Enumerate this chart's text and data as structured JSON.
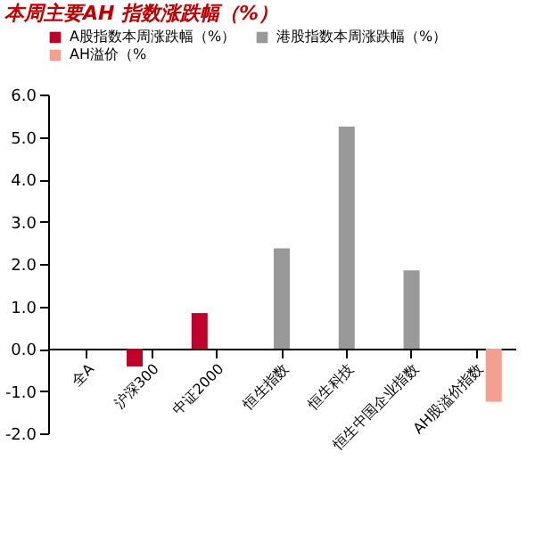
{
  "chart_data": {
    "type": "bar",
    "title": "本周主要AH 指数涨跌幅（%）",
    "categories": [
      "全A",
      "沪深300",
      "中证2000",
      "恒生指数",
      "恒生科技",
      "恒生中国企业指数",
      "AH股溢价指数"
    ],
    "series": [
      {
        "name": "A股指数本周涨跌幅（%）",
        "color": "#c0002a",
        "values": [
          0.0,
          -0.42,
          0.84,
          null,
          null,
          null,
          null
        ]
      },
      {
        "name": "港股指数本周涨跌幅（%）",
        "color": "#999999",
        "values": [
          null,
          null,
          null,
          2.37,
          5.24,
          1.85,
          null
        ]
      },
      {
        "name": "AH溢价（%",
        "color": "#f4a090",
        "values": [
          null,
          null,
          null,
          null,
          null,
          null,
          -1.25
        ]
      }
    ],
    "ylim": [
      -2,
      6
    ],
    "yticks": [
      {
        "value": -2,
        "label": "-2.0"
      },
      {
        "value": -1,
        "label": "-1.0"
      },
      {
        "value": 0,
        "label": "0.0"
      },
      {
        "value": 1,
        "label": "1.0"
      },
      {
        "value": 2,
        "label": "2.0"
      },
      {
        "value": 3,
        "label": "3.0"
      },
      {
        "value": 4,
        "label": "4.0"
      },
      {
        "value": 5,
        "label": "5.0"
      },
      {
        "value": 6,
        "label": "6.0"
      }
    ],
    "grid": false,
    "legend": "top"
  }
}
